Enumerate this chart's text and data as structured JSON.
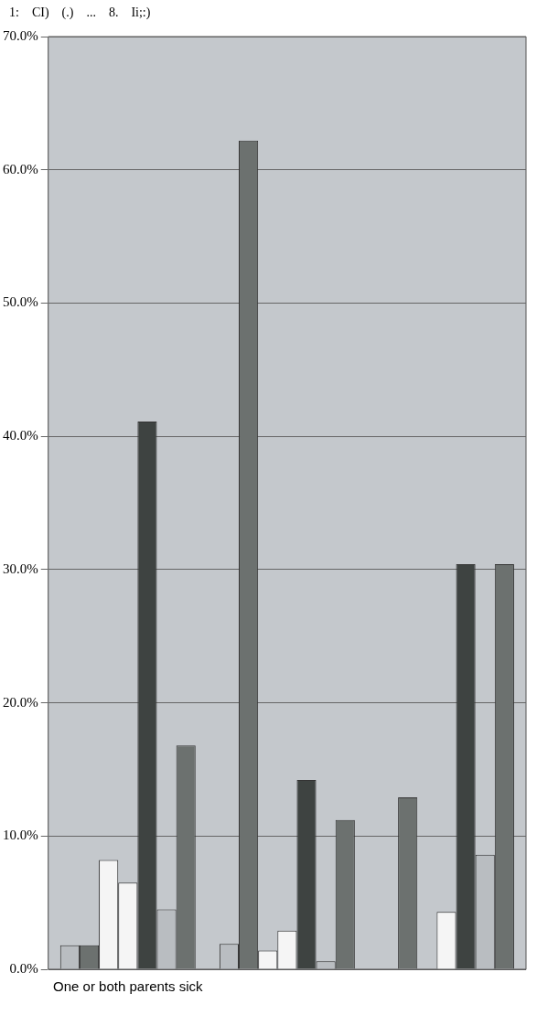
{
  "chart_data": {
    "type": "bar",
    "categories": [
      "One or both parents sick",
      null,
      null
    ],
    "series": [
      {
        "color": "#b9bdc1",
        "values": [
          1.8,
          1.9,
          0
        ]
      },
      {
        "color": "#6c716f",
        "values": [
          1.8,
          62.2,
          12.9
        ]
      },
      {
        "color": "#f5f5f5",
        "values": [
          8.2,
          1.4,
          0
        ]
      },
      {
        "color": "#f5f5f5",
        "values": [
          6.5,
          2.9,
          4.3
        ]
      },
      {
        "color": "#3e4341",
        "values": [
          41.1,
          14.2,
          30.4
        ]
      },
      {
        "color": "#b9bdc1",
        "values": [
          4.5,
          0.6,
          8.6
        ]
      },
      {
        "color": "#6c716f",
        "values": [
          16.8,
          11.2,
          30.4
        ]
      }
    ],
    "ylim": [
      0,
      70
    ],
    "yticks": [
      {
        "value": 0,
        "label": "0.0%"
      },
      {
        "value": 10,
        "label": "10.0%"
      },
      {
        "value": 20,
        "label": "20.0%"
      },
      {
        "value": 30,
        "label": "30.0%"
      },
      {
        "value": 40,
        "label": "40.0%"
      },
      {
        "value": 50,
        "label": "50.0%"
      },
      {
        "value": 60,
        "label": "60.0%"
      },
      {
        "value": 70,
        "label": "70.0%"
      }
    ],
    "grid": "y",
    "legend": false,
    "annotations": [
      "1:",
      "CI)",
      "(.)",
      "...",
      "8.",
      "Ii;:)"
    ]
  }
}
